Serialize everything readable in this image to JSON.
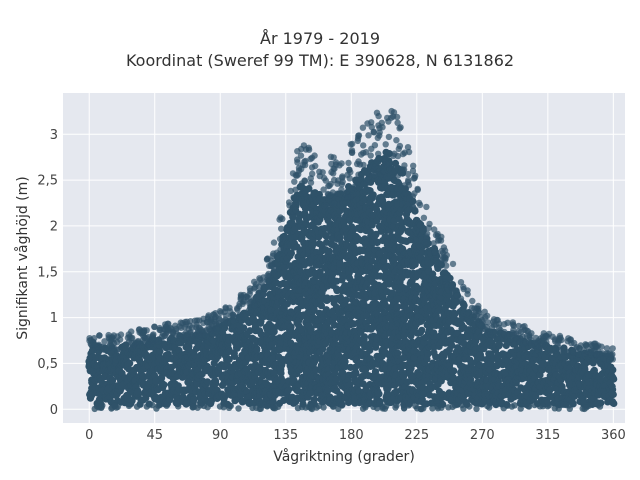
{
  "chart_data": {
    "type": "scatter",
    "title": "År 1979 - 2019",
    "subtitle": "Koordinat (Sweref 99 TM): E 390628, N 6131862",
    "xlabel": "Vågriktning (grader)",
    "ylabel": "Signifikant våghöjd (m)",
    "x_ticks": [
      "0",
      "45",
      "90",
      "135",
      "180",
      "225",
      "270",
      "315",
      "360"
    ],
    "y_ticks": [
      "0",
      "0,5",
      "1",
      "1,5",
      "2",
      "2,5",
      "3"
    ],
    "xlim": [
      -18,
      368
    ],
    "ylim": [
      -0.15,
      3.45
    ],
    "grid": true,
    "marker_color": "#2f5269",
    "background": "#e5e8ef",
    "envelope": {
      "description_direction_deg": [
        0,
        20,
        45,
        70,
        90,
        110,
        125,
        135,
        145,
        155,
        165,
        175,
        185,
        195,
        205,
        215,
        225,
        235,
        245,
        255,
        265,
        275,
        290,
        305,
        320,
        335,
        350,
        360
      ],
      "max_height_m": [
        0.8,
        0.8,
        0.9,
        0.95,
        1.05,
        1.3,
        1.7,
        2.3,
        2.9,
        2.75,
        2.7,
        2.75,
        3.0,
        3.15,
        3.3,
        3.05,
        2.5,
        2.1,
        1.75,
        1.4,
        1.15,
        1.0,
        0.95,
        0.85,
        0.8,
        0.75,
        0.7,
        0.65
      ]
    }
  }
}
